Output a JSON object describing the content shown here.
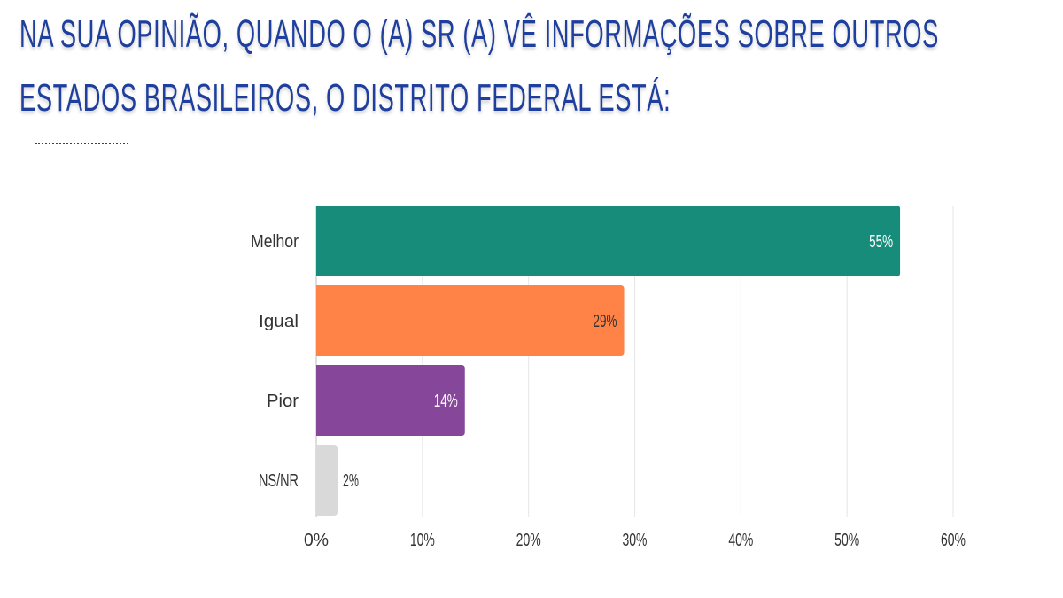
{
  "title_lines": [
    "NA SUA OPINIÃO, QUANDO O (A) SR (A) VÊ INFORMAÇÕES SOBRE OUTROS",
    "ESTADOS BRASILEIROS, O DISTRITO FEDERAL ESTÁ:"
  ],
  "chart_data": {
    "type": "bar",
    "orientation": "horizontal",
    "title": "NA SUA OPINIÃO, QUANDO O (A) SR (A) VÊ INFORMAÇÕES SOBRE OUTROS ESTADOS BRASILEIROS, O DISTRITO FEDERAL ESTÁ:",
    "categories": [
      "Melhor",
      "Igual",
      "Pior",
      "NS/NR"
    ],
    "values": [
      55,
      29,
      14,
      2
    ],
    "value_labels": [
      "55%",
      "29%",
      "14%",
      "2%"
    ],
    "colors": [
      "#178c7a",
      "#ff8247",
      "#86479a",
      "#d9d9d9"
    ],
    "label_colors": [
      "#ffffff",
      "#333333",
      "#ffffff",
      "#333333"
    ],
    "label_inside": [
      true,
      true,
      true,
      false
    ],
    "xlim": [
      0,
      60
    ],
    "xticks": [
      0,
      10,
      20,
      30,
      40,
      50,
      60
    ],
    "xtick_labels": [
      "0%",
      "10%",
      "20%",
      "30%",
      "40%",
      "50%",
      "60%"
    ],
    "grid": true,
    "xlabel": "",
    "ylabel": ""
  }
}
